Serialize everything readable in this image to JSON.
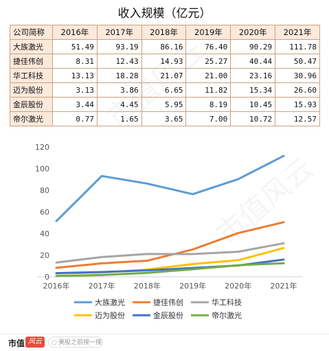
{
  "title": "收入规模（亿元）",
  "table": {
    "header": [
      "公司简称",
      "2016年",
      "2017年",
      "2018年",
      "2019年",
      "2020年",
      "2021年"
    ],
    "rows": [
      [
        "大族激光",
        "51.49",
        "93.19",
        "86.16",
        "76.40",
        "90.29",
        "111.78"
      ],
      [
        "捷佳伟创",
        "8.31",
        "12.43",
        "14.93",
        "25.27",
        "40.44",
        "50.47"
      ],
      [
        "华工科技",
        "13.13",
        "18.28",
        "21.07",
        "21.00",
        "23.16",
        "30.96"
      ],
      [
        "迈为股份",
        "3.13",
        "3.86",
        "6.65",
        "11.82",
        "15.34",
        "26.60"
      ],
      [
        "金辰股份",
        "3.44",
        "4.45",
        "5.95",
        "8.19",
        "10.45",
        "15.93"
      ],
      [
        "帝尔激光",
        "0.77",
        "1.65",
        "3.65",
        "7.00",
        "10.72",
        "12.57"
      ]
    ]
  },
  "chart_data": {
    "type": "line",
    "x": [
      "2016年",
      "2017年",
      "2018年",
      "2019年",
      "2020年",
      "2021年"
    ],
    "ylim": [
      0,
      120
    ],
    "yticks": [
      0,
      20,
      40,
      60,
      80,
      100,
      120
    ],
    "grid": false,
    "legend_position": "bottom",
    "series": [
      {
        "name": "大族激光",
        "color": "#5b9bd5",
        "values": [
          51.49,
          93.19,
          86.16,
          76.4,
          90.29,
          111.78
        ]
      },
      {
        "name": "捷佳伟创",
        "color": "#ed7d31",
        "values": [
          8.31,
          12.43,
          14.93,
          25.27,
          40.44,
          50.47
        ]
      },
      {
        "name": "华工科技",
        "color": "#a5a5a5",
        "values": [
          13.13,
          18.28,
          21.07,
          21.0,
          23.16,
          30.96
        ]
      },
      {
        "name": "迈为股份",
        "color": "#ffc000",
        "values": [
          3.13,
          3.86,
          6.65,
          11.82,
          15.34,
          26.6
        ]
      },
      {
        "name": "金辰股份",
        "color": "#4472c4",
        "values": [
          3.44,
          4.45,
          5.95,
          8.19,
          10.45,
          15.93
        ]
      },
      {
        "name": "帝尔激光",
        "color": "#70ad47",
        "values": [
          0.77,
          1.65,
          3.65,
          7.0,
          10.72,
          12.57
        ]
      }
    ]
  },
  "footer": {
    "brand": "市值",
    "badge": "风云",
    "search_placeholder": "美股之前搜一搜",
    "search_icon": "search-icon"
  },
  "watermark": "市值风云"
}
